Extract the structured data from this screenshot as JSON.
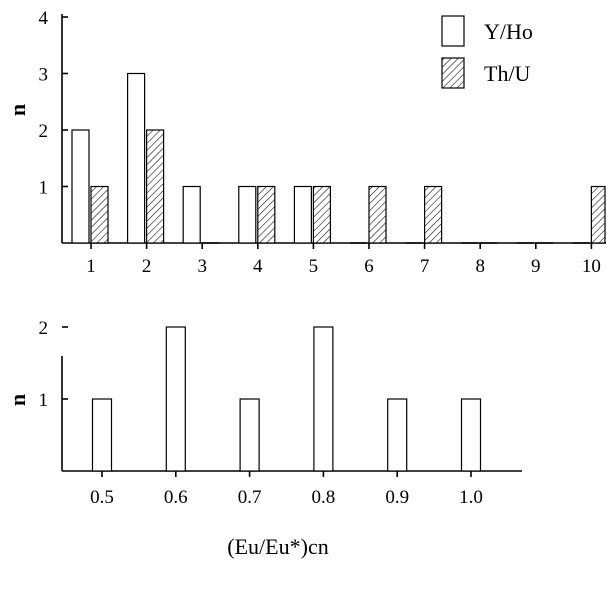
{
  "chart_data": [
    {
      "type": "bar",
      "categories": [
        "1",
        "2",
        "3",
        "4",
        "5",
        "6",
        "7",
        "8",
        "9",
        "10"
      ],
      "series": [
        {
          "name": "Y/Ho",
          "values": [
            2,
            3,
            1,
            1,
            1,
            0,
            0,
            0,
            0,
            0
          ],
          "fill": "white"
        },
        {
          "name": "Th/U",
          "values": [
            1,
            2,
            0,
            1,
            1,
            1,
            1,
            0,
            0,
            1
          ],
          "fill": "hatched"
        }
      ],
      "ylabel": "n",
      "xlabel": "",
      "ylim": [
        0,
        4
      ],
      "yticks": [
        "1",
        "2",
        "3",
        "4"
      ],
      "legend": "top-right",
      "grid": false
    },
    {
      "type": "bar",
      "categories": [
        "0.5",
        "0.6",
        "0.7",
        "0.8",
        "0.9",
        "1.0"
      ],
      "series": [
        {
          "name": "",
          "values": [
            1,
            2,
            1,
            2,
            1,
            1
          ],
          "fill": "white"
        }
      ],
      "ylabel": "n",
      "xlabel": "(Eu/Eu*)cn",
      "ylim": [
        0,
        2
      ],
      "yticks": [
        "1",
        "2"
      ],
      "grid": false
    }
  ]
}
